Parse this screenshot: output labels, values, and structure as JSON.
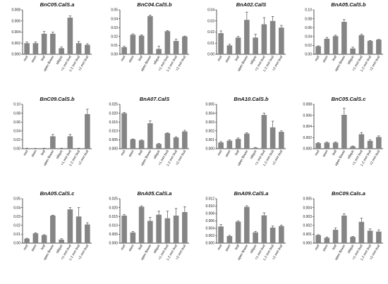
{
  "style": {
    "bar_color": "#858585",
    "axis_color": "#111111",
    "error_color": "#333333"
  },
  "chart_data": [
    {
      "type": "bar",
      "title": "BnC05.CalS.a",
      "categories": [
        "root",
        "stem",
        "leaf",
        "open flower",
        "silique",
        "<1 mm bud",
        "1-2 mm bud",
        ">2 mm bud"
      ],
      "values": [
        0.002,
        0.002,
        0.0037,
        0.0037,
        0.0011,
        0.0066,
        0.002,
        0.0017
      ],
      "errors": [
        0.0002,
        0.0002,
        0.0004,
        0.0003,
        0.0002,
        0.0003,
        0.0003,
        0.0002
      ],
      "ylim": [
        0,
        0.008
      ],
      "yticks": [
        "0.000",
        "0.002",
        "0.004",
        "0.006",
        "0.008"
      ]
    },
    {
      "type": "bar",
      "title": "BnC04.CalS.b",
      "categories": [
        "root",
        "stem",
        "leaf",
        "open flower",
        "silique",
        "<1 mm bud",
        "1-2 mm bud",
        ">2 mm bud"
      ],
      "values": [
        0.008,
        0.022,
        0.021,
        0.043,
        0.006,
        0.026,
        0.015,
        0.02
      ],
      "errors": [
        0.001,
        0.001,
        0.001,
        0.001,
        0.003,
        0.0007,
        0.002,
        0.0005
      ],
      "ylim": [
        0,
        0.05
      ],
      "yticks": [
        "0.00",
        "0.01",
        "0.02",
        "0.03",
        "0.04",
        "0.05"
      ]
    },
    {
      "type": "bar",
      "title": "BnA02.CalS",
      "categories": [
        "root",
        "stem",
        "leaf",
        "open flower",
        "silique",
        "<1 mm bud",
        "1-2 mm bud",
        ">2 mm bud"
      ],
      "values": [
        0.019,
        0.008,
        0.015,
        0.031,
        0.015,
        0.027,
        0.03,
        0.024
      ],
      "errors": [
        0.002,
        0.001,
        0.001,
        0.007,
        0.003,
        0.006,
        0.004,
        0.002
      ],
      "ylim": [
        0,
        0.04
      ],
      "yticks": [
        "0.00",
        "0.01",
        "0.02",
        "0.03",
        "0.04"
      ]
    },
    {
      "type": "bar",
      "title": "BnA05.CalS.b",
      "categories": [
        "root",
        "stem",
        "leaf",
        "open flower",
        "silique",
        "<1 mm bud",
        "1-2 mm bud",
        ">2 mm bud"
      ],
      "values": [
        0.018,
        0.035,
        0.041,
        0.073,
        0.013,
        0.043,
        0.03,
        0.033
      ],
      "errors": [
        0.001,
        0.003,
        0.002,
        0.005,
        0.003,
        0.002,
        0.001,
        0.0005
      ],
      "ylim": [
        0,
        0.1
      ],
      "yticks": [
        "0.00",
        "0.02",
        "0.04",
        "0.06",
        "0.08",
        "0.10"
      ]
    },
    {
      "type": "bar",
      "title": "BnC09.CalS.b",
      "categories": [
        "root",
        "stem",
        "leaf",
        "open flower",
        "silique",
        "<1 mm bud",
        "1-2 mm bud",
        ">2 mm bud"
      ],
      "values": [
        0.001,
        0.0005,
        0.001,
        0.028,
        0.001,
        0.028,
        0.001,
        0.078
      ],
      "errors": [
        0.0002,
        0.0002,
        0.0002,
        0.004,
        0.0002,
        0.004,
        0.0002,
        0.011
      ],
      "ylim": [
        0,
        0.1
      ],
      "yticks": [
        "0.00",
        "0.02",
        "0.04",
        "0.06",
        "0.08",
        "0.10"
      ]
    },
    {
      "type": "bar",
      "title": "BnA07.CalS",
      "categories": [
        "root",
        "stem",
        "leaf",
        "open flower",
        "silique",
        "<1 mm bud",
        "1-2 mm bud",
        ">2 mm bud"
      ],
      "values": [
        0.02,
        0.0053,
        0.0047,
        0.0143,
        0.0027,
        0.0087,
        0.0063,
        0.0097
      ],
      "errors": [
        0.0004,
        0.0002,
        0.0002,
        0.0013,
        0.0002,
        0.0002,
        0.0004,
        0.0006
      ],
      "ylim": [
        0,
        0.025
      ],
      "yticks": [
        "0.000",
        "0.005",
        "0.010",
        "0.015",
        "0.020",
        "0.025"
      ]
    },
    {
      "type": "bar",
      "title": "BnA10.CalS.b",
      "categories": [
        "root",
        "stem",
        "leaf",
        "open flower",
        "silique",
        "<1 mm bud",
        "1-2 mm bud",
        ">2 mm bud"
      ],
      "values": [
        0.0007,
        0.0009,
        0.0011,
        0.0017,
        0.0001,
        0.0038,
        0.0024,
        0.0019
      ],
      "errors": [
        0.0001,
        0.0001,
        0.0001,
        0.0001,
        5e-05,
        0.0002,
        0.0007,
        0.0001
      ],
      "ylim": [
        0,
        0.005
      ],
      "yticks": [
        "0.000",
        "0.001",
        "0.002",
        "0.003",
        "0.004",
        "0.005"
      ]
    },
    {
      "type": "bar",
      "title": "BnC05.CalS.c",
      "categories": [
        "root",
        "stem",
        "leaf",
        "open flower",
        "silique",
        "<1 mm bud",
        "1-2 mm bud",
        ">2 mm bud"
      ],
      "values": [
        0.001,
        0.0011,
        0.0011,
        0.0061,
        0.0004,
        0.0026,
        0.0014,
        0.0021
      ],
      "errors": [
        0.0001,
        0.0001,
        0.0001,
        0.0012,
        0.0001,
        0.0003,
        0.0002,
        0.0002
      ],
      "ylim": [
        0,
        0.008
      ],
      "yticks": [
        "0.000",
        "0.002",
        "0.004",
        "0.006",
        "0.008"
      ]
    },
    {
      "type": "bar",
      "title": "BnA05.CalS.c",
      "categories": [
        "root",
        "stem",
        "leaf",
        "open flower",
        "silique",
        "<1 mm bud",
        "1-2 mm bud",
        ">2 mm bud"
      ],
      "values": [
        0.005,
        0.011,
        0.009,
        0.031,
        0.004,
        0.038,
        0.03,
        0.021
      ],
      "errors": [
        0.0005,
        0.0007,
        0.0005,
        0.0005,
        0.001,
        0.002,
        0.01,
        0.002
      ],
      "ylim": [
        0,
        0.05
      ],
      "yticks": [
        "0.00",
        "0.01",
        "0.02",
        "0.03",
        "0.04",
        "0.05"
      ]
    },
    {
      "type": "bar",
      "title": "BnA05.CalS.a",
      "categories": [
        "root",
        "stem",
        "leaf",
        "open flower",
        "silique",
        "<1 mm bud",
        "1-2 mm bud",
        ">2 mm bud"
      ],
      "values": [
        0.0155,
        0.006,
        0.0205,
        0.0125,
        0.016,
        0.014,
        0.0155,
        0.0175
      ],
      "errors": [
        0.0005,
        0.0005,
        0.0005,
        0.002,
        0.002,
        0.004,
        0.004,
        0.003
      ],
      "ylim": [
        0,
        0.025
      ],
      "yticks": [
        "0.000",
        "0.005",
        "0.010",
        "0.015",
        "0.020",
        "0.025"
      ]
    },
    {
      "type": "bar",
      "title": "BnA09.CalS.a",
      "categories": [
        "root",
        "stem",
        "leaf",
        "open flower",
        "silique",
        "<1 mm bud",
        "1-2 mm bud",
        ">2 mm bud"
      ],
      "values": [
        0.0045,
        0.0019,
        0.0058,
        0.0098,
        0.0029,
        0.0075,
        0.0042,
        0.0046
      ],
      "errors": [
        0.0005,
        0.0002,
        0.0002,
        0.0003,
        0.0003,
        0.0007,
        0.0004,
        0.0003
      ],
      "ylim": [
        0,
        0.012
      ],
      "yticks": [
        "0.000",
        "0.002",
        "0.004",
        "0.006",
        "0.008",
        "0.010",
        "0.012"
      ]
    },
    {
      "type": "bar",
      "title": "BnC09.Cals.a",
      "categories": [
        "root",
        "stem",
        "leaf",
        "open flower",
        "silique",
        "<1 mm bud",
        "1-2 mm bud",
        ">2 mm bud"
      ],
      "values": [
        0.0009,
        0.0006,
        0.0015,
        0.0031,
        0.0007,
        0.0024,
        0.0014,
        0.0013
      ],
      "errors": [
        5e-05,
        0.0001,
        0.0002,
        0.0002,
        5e-05,
        0.0004,
        0.0002,
        0.0002
      ],
      "ylim": [
        0,
        0.005
      ],
      "yticks": [
        "0.000",
        "0.001",
        "0.002",
        "0.003",
        "0.004",
        "0.005"
      ]
    }
  ]
}
